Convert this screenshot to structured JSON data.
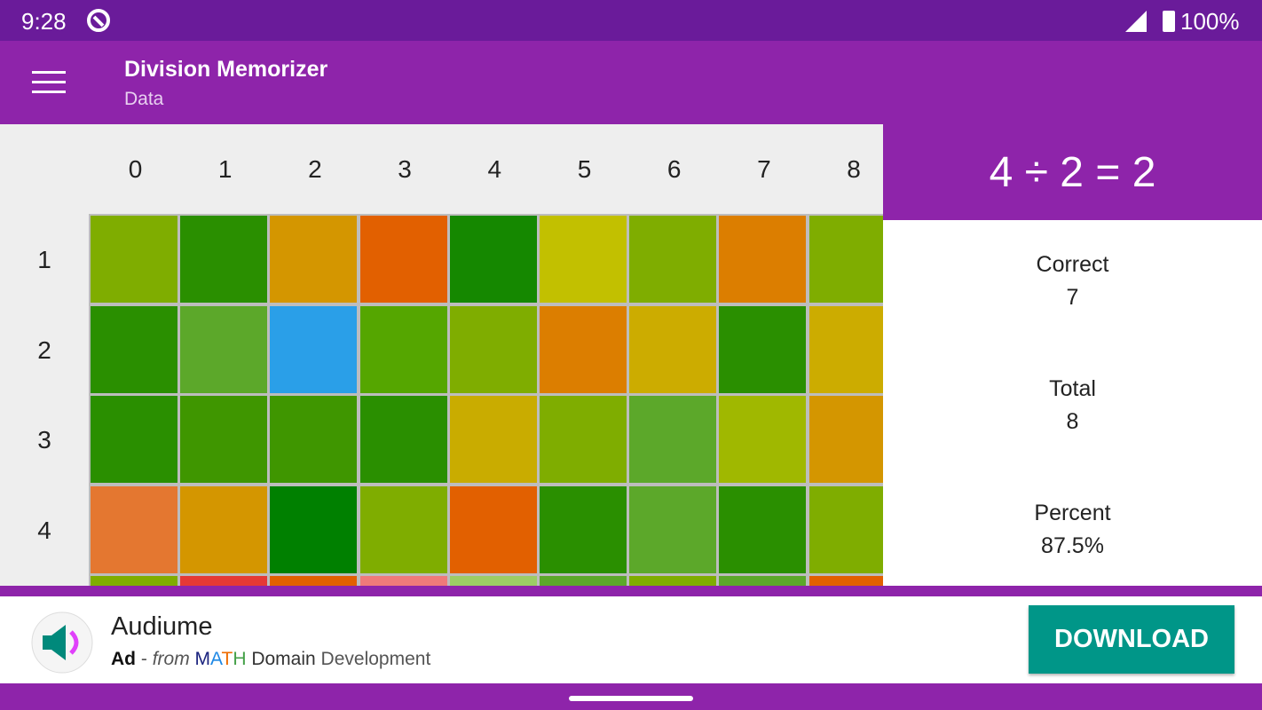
{
  "status_bar": {
    "time": "9:28",
    "battery": "100%"
  },
  "app_bar": {
    "title": "Division Memorizer",
    "subtitle": "Data"
  },
  "grid": {
    "columns": [
      "0",
      "1",
      "2",
      "3",
      "4",
      "5",
      "6",
      "7",
      "8"
    ],
    "rows": [
      {
        "label": "1",
        "colors": [
          "#7fad00",
          "#2a8f00",
          "#d49600",
          "#e26000",
          "#158800",
          "#c2c000",
          "#7fad00",
          "#dc7e00",
          "#7fad00"
        ]
      },
      {
        "label": "2",
        "colors": [
          "#2a8f00",
          "#5ca82a",
          "#2a9fe8",
          "#55a600",
          "#7fad00",
          "#dc7e00",
          "#ccac00",
          "#2a8f00",
          "#ccac00"
        ]
      },
      {
        "label": "3",
        "colors": [
          "#2a8f00",
          "#3f9600",
          "#3f9600",
          "#2a8f00",
          "#c9ac00",
          "#7fad00",
          "#5ca82a",
          "#a0b800",
          "#d49600"
        ]
      },
      {
        "label": "4",
        "colors": [
          "#e47730",
          "#d49600",
          "#008000",
          "#7fad00",
          "#e26000",
          "#2a8f00",
          "#5ca82a",
          "#2a8f00",
          "#7fad00"
        ]
      },
      {
        "label": null,
        "colors": [
          "#7fad00",
          "#e53935",
          "#e26000",
          "#ef7a7a",
          "#9ccc65",
          "#5ca82a",
          "#7fad00",
          "#5ca82a",
          "#e26000"
        ]
      }
    ]
  },
  "detail": {
    "equation": "4 ÷ 2 = 2",
    "stats": [
      {
        "label": "Correct",
        "value": "7"
      },
      {
        "label": "Total",
        "value": "8"
      },
      {
        "label": "Percent",
        "value": "87.5%"
      }
    ]
  },
  "ad": {
    "app_name": "Audiume",
    "badge": "Ad",
    "separator": "-",
    "from": "from",
    "publisher_letters": [
      {
        "text": "M",
        "color": "#1a237e"
      },
      {
        "text": "A",
        "color": "#1e88e5"
      },
      {
        "text": "T",
        "color": "#ef6c00"
      },
      {
        "text": "H",
        "color": "#43a047"
      }
    ],
    "publisher_rest": [
      "Domain",
      "Development"
    ],
    "button": "DOWNLOAD"
  }
}
